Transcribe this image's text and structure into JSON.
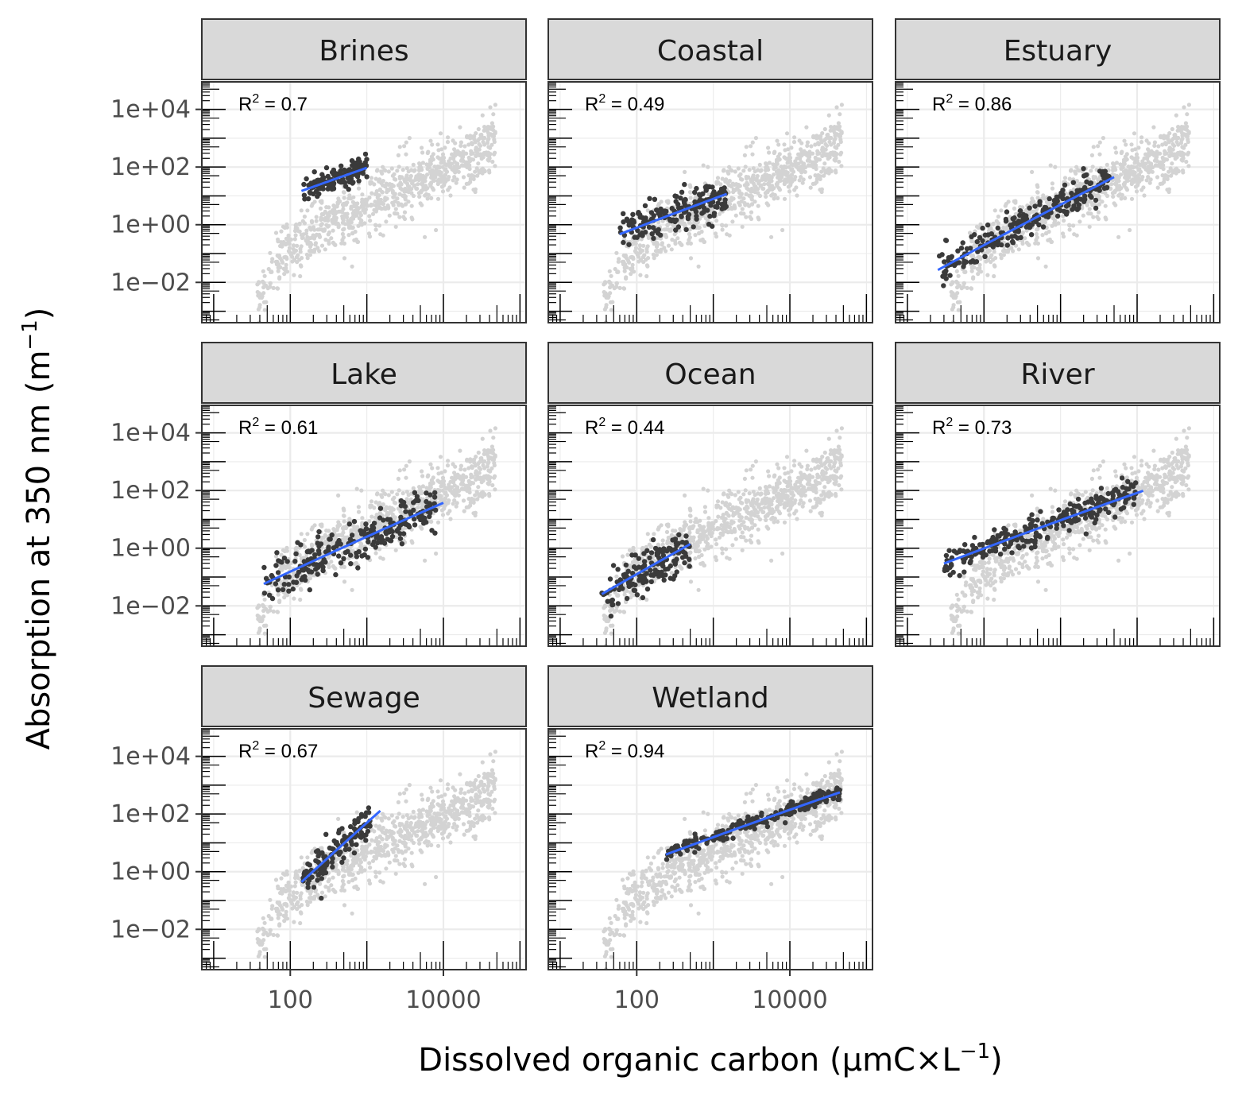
{
  "chart_data": {
    "type": "scatter",
    "layout": "faceted",
    "xlabel": {
      "prefix": "Dissolved organic carbon (",
      "mu": "μ",
      "unit": "mC",
      "times": "×",
      "L": "L",
      "sup": "−1",
      "suffix": ")"
    },
    "ylabel": {
      "prefix": "Absorption at 350 nm (",
      "m": "m",
      "sup": "−1",
      "suffix": ")"
    },
    "x_scale": "log10",
    "y_scale": "log10",
    "xlim": [
      7,
      120000
    ],
    "ylim": [
      0.0004,
      90000
    ],
    "x_ticks": [
      {
        "value": 100,
        "label": "100"
      },
      {
        "value": 10000,
        "label": "10000"
      }
    ],
    "y_ticks": [
      {
        "value": 0.01,
        "label": "1e−02"
      },
      {
        "value": 1,
        "label": "1e+00"
      },
      {
        "value": 100,
        "label": "1e+02"
      },
      {
        "value": 10000,
        "label": "1e+04"
      }
    ],
    "grid": true,
    "colors": {
      "background_points": "#d3d3d3",
      "highlight_points": "#3a3a3a",
      "fit_line": "#3366ff",
      "strip_fill": "#d9d9d9",
      "panel_border": "#333333",
      "grid": "#ebebeb"
    },
    "r2_label": {
      "R": "R",
      "sup": "2",
      "eq": " = "
    },
    "background_cloud": {
      "center_line": [
        [
          40,
          0.003
        ],
        [
          80,
          0.08
        ],
        [
          200,
          0.8
        ],
        [
          1000,
          5
        ],
        [
          5000,
          40
        ],
        [
          30000,
          300
        ],
        [
          50000,
          1500
        ]
      ],
      "spread": 0.5
    },
    "panels": [
      {
        "name": "Brines",
        "r2": "0.7",
        "fit": {
          "x0": 140,
          "x1": 1000,
          "a": -0.845,
          "b": 0.94
        },
        "points": {
          "x_range": [
            140,
            1000
          ],
          "scatter": 0.22
        }
      },
      {
        "name": "Coastal",
        "r2": "0.49",
        "fit": {
          "x0": 60,
          "x1": 1500,
          "a": -2.1,
          "b": 1.0
        },
        "points": {
          "x_range": [
            60,
            1500
          ],
          "scatter": 0.35
        }
      },
      {
        "name": "Estuary",
        "r2": "0.86",
        "fit": {
          "x0": 25,
          "x1": 5000,
          "a": -3.5,
          "b": 1.4
        },
        "points": {
          "x_range": [
            25,
            4500
          ],
          "scatter": 0.3
        }
      },
      {
        "name": "Lake",
        "r2": "0.61",
        "fit": {
          "x0": 45,
          "x1": 10000,
          "a": -3.2,
          "b": 1.2
        },
        "points": {
          "x_range": [
            45,
            8000
          ],
          "scatter": 0.4
        }
      },
      {
        "name": "Ocean",
        "r2": "0.44",
        "fit": {
          "x0": 35,
          "x1": 500,
          "a": -3.9,
          "b": 1.5
        },
        "points": {
          "x_range": [
            35,
            500
          ],
          "scatter": 0.45
        }
      },
      {
        "name": "River",
        "r2": "0.73",
        "fit": {
          "x0": 30,
          "x1": 12000,
          "a": -1.94,
          "b": 0.97
        },
        "points": {
          "x_range": [
            30,
            10000
          ],
          "scatter": 0.25
        }
      },
      {
        "name": "Sewage",
        "r2": "0.67",
        "fit": {
          "x0": 140,
          "x1": 1500,
          "a": -5.5,
          "b": 2.4
        },
        "points": {
          "x_range": [
            140,
            1100
          ],
          "scatter": 0.3
        }
      },
      {
        "name": "Wetland",
        "r2": "0.94",
        "fit": {
          "x0": 240,
          "x1": 45000,
          "a": -1.65,
          "b": 0.95
        },
        "points": {
          "x_range": [
            240,
            45000
          ],
          "scatter": 0.12
        }
      }
    ]
  }
}
